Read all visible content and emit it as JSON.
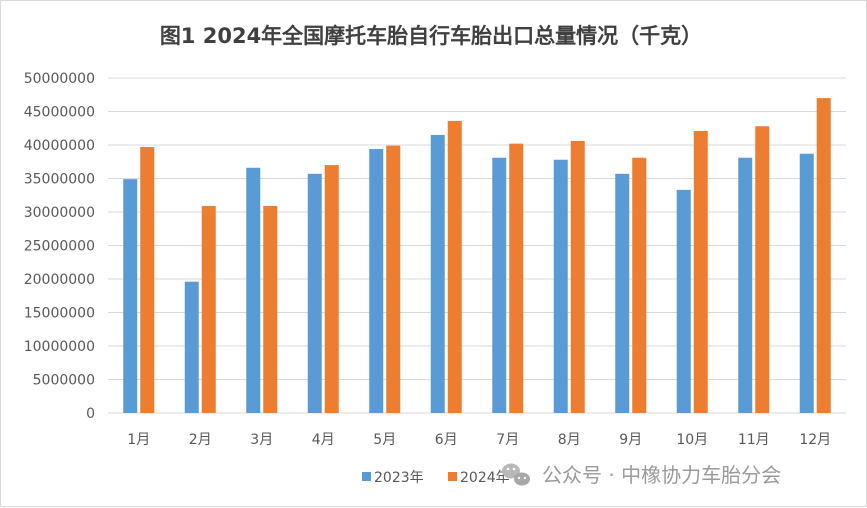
{
  "chart_data": {
    "type": "bar",
    "title": "图1  2024年全国摩托车胎自行车胎出口总量情况（千克）",
    "xlabel": "",
    "ylabel": "",
    "categories": [
      "1月",
      "2月",
      "3月",
      "4月",
      "5月",
      "6月",
      "7月",
      "8月",
      "9月",
      "10月",
      "11月",
      "12月"
    ],
    "series": [
      {
        "name": "2023年",
        "color": "#5b9bd5",
        "values": [
          34900000,
          19600000,
          36600000,
          35700000,
          39400000,
          41500000,
          38100000,
          37800000,
          35700000,
          33300000,
          38100000,
          38700000
        ]
      },
      {
        "name": "2024年",
        "color": "#ed7d31",
        "values": [
          39700000,
          30900000,
          30900000,
          37000000,
          39900000,
          43600000,
          40200000,
          40600000,
          38100000,
          42100000,
          42800000,
          47000000
        ]
      }
    ],
    "ylim": [
      0,
      50000000
    ],
    "yticks": [
      "0",
      "5000000",
      "10000000",
      "15000000",
      "20000000",
      "25000000",
      "30000000",
      "35000000",
      "40000000",
      "45000000",
      "50000000"
    ],
    "grid": true,
    "gridColor": "#d9d9d9",
    "legend_position": "bottom"
  },
  "watermark": {
    "text": "公众号 · 中橡协力车胎分会",
    "icon": "wechat-icon"
  }
}
